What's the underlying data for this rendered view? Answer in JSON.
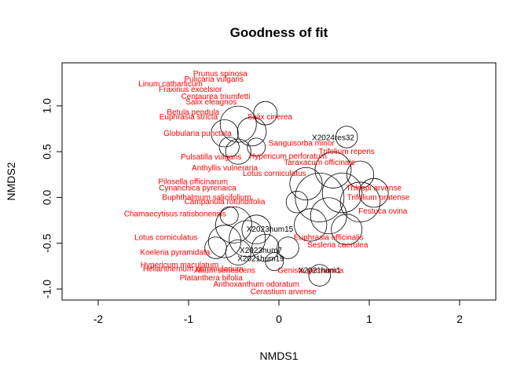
{
  "chart_data": {
    "type": "scatter",
    "title": "Goodness of fit",
    "xlabel": "NMDS1",
    "ylabel": "NMDS2",
    "xlim": [
      -2.4,
      2.4
    ],
    "ylim": [
      -1.12,
      1.47
    ],
    "xticks": [
      -2,
      -1,
      0,
      1,
      2
    ],
    "yticks": [
      -1.0,
      -0.5,
      0.0,
      0.5,
      1.0
    ],
    "ytick_labels": [
      "-1.0",
      "-0.5",
      "0.0",
      "0.5",
      "1.0"
    ],
    "grid": false,
    "colors": {
      "species": "#ff0000",
      "sites": "#000000",
      "circles": "#000000"
    },
    "species": [
      {
        "name": "Prunus spinosa",
        "x": -0.65,
        "y": 1.35
      },
      {
        "name": "Pulicaria vulgaris",
        "x": -0.72,
        "y": 1.29
      },
      {
        "name": "Linum catharticum",
        "x": -1.2,
        "y": 1.24
      },
      {
        "name": "Fraxinus excelsior",
        "x": -0.98,
        "y": 1.18
      },
      {
        "name": "Centaurea triumfetti",
        "x": -0.7,
        "y": 1.1
      },
      {
        "name": "Salix eleagnos",
        "x": -0.75,
        "y": 1.04
      },
      {
        "name": "Betula pendula",
        "x": -0.95,
        "y": 0.93
      },
      {
        "name": "Euphrasia stricta",
        "x": -1.0,
        "y": 0.88
      },
      {
        "name": "Salix cinerea",
        "x": -0.1,
        "y": 0.88
      },
      {
        "name": "Globularia punctata",
        "x": -0.9,
        "y": 0.7
      },
      {
        "name": "Pulsatilla vulgaris",
        "x": -0.75,
        "y": 0.44
      },
      {
        "name": "Anthyllis vulneraria",
        "x": -0.6,
        "y": 0.32
      },
      {
        "name": "Sanguisorba minor",
        "x": 0.25,
        "y": 0.59
      },
      {
        "name": "Hypericum perforatum",
        "x": 0.1,
        "y": 0.45
      },
      {
        "name": "Trifolium repens",
        "x": 0.75,
        "y": 0.5
      },
      {
        "name": "Taraxacum officinale",
        "x": 0.45,
        "y": 0.38
      },
      {
        "name": "Lotus corniculatus",
        "x": -0.05,
        "y": 0.26
      },
      {
        "name": "Pilosella officinarum",
        "x": -0.95,
        "y": 0.17
      },
      {
        "name": "Cynanchica pyrenaica",
        "x": -0.9,
        "y": 0.1
      },
      {
        "name": "Buphthalmum salicifolium",
        "x": -0.8,
        "y": 0.0
      },
      {
        "name": "Campanula rotundifolia",
        "x": -0.6,
        "y": -0.05
      },
      {
        "name": "Chamaecytisus ratisbonensis",
        "x": -1.15,
        "y": -0.18
      },
      {
        "name": "Thlaspi arvense",
        "x": 1.05,
        "y": 0.1
      },
      {
        "name": "Trifolium pratense",
        "x": 1.1,
        "y": 0.0
      },
      {
        "name": "Festuca ovina",
        "x": 1.15,
        "y": -0.15
      },
      {
        "name": "Lotus corniculatus",
        "x": -1.25,
        "y": -0.44
      },
      {
        "name": "Koeleria pyramidata",
        "x": -1.15,
        "y": -0.6
      },
      {
        "name": "Sesleria caerulea",
        "x": 0.65,
        "y": -0.52
      },
      {
        "name": "Euphrasia officinalis",
        "x": 0.55,
        "y": -0.44
      },
      {
        "name": "Hypericum maculatum",
        "x": -1.1,
        "y": -0.74
      },
      {
        "name": "Helianthemum nummularium",
        "x": -0.95,
        "y": -0.78
      },
      {
        "name": "Allium senescens",
        "x": -0.6,
        "y": -0.8
      },
      {
        "name": "Platanthera bifolia",
        "x": -0.75,
        "y": -0.88
      },
      {
        "name": "Anthoxanthum odoratum",
        "x": -0.25,
        "y": -0.95
      },
      {
        "name": "Cerastium arvense",
        "x": 0.05,
        "y": -1.03
      },
      {
        "name": "Genista germanica",
        "x": 0.35,
        "y": -0.8
      }
    ],
    "sites": [
      {
        "name": "X2024res32",
        "x": 0.6,
        "y": 0.65
      },
      {
        "name": "X2023hum15",
        "x": -0.1,
        "y": -0.35
      },
      {
        "name": "X2023hum7",
        "x": -0.2,
        "y": -0.58
      },
      {
        "name": "X2021hum19",
        "x": -0.2,
        "y": -0.67
      },
      {
        "name": "X2021hum1",
        "x": 0.45,
        "y": -0.8
      }
    ],
    "circles": [
      {
        "x": -0.15,
        "y": 0.92,
        "r": 0.13
      },
      {
        "x": -0.45,
        "y": 0.8,
        "r": 0.2
      },
      {
        "x": -0.6,
        "y": 0.7,
        "r": 0.15
      },
      {
        "x": -0.3,
        "y": 0.72,
        "r": 0.16
      },
      {
        "x": -0.55,
        "y": 0.55,
        "r": 0.11
      },
      {
        "x": -0.45,
        "y": 0.5,
        "r": 0.14
      },
      {
        "x": -0.25,
        "y": 0.55,
        "r": 0.1
      },
      {
        "x": 0.75,
        "y": 0.66,
        "r": 0.12
      },
      {
        "x": 0.45,
        "y": 0.0,
        "r": 0.27
      },
      {
        "x": 0.7,
        "y": 0.05,
        "r": 0.22
      },
      {
        "x": 0.3,
        "y": 0.15,
        "r": 0.18
      },
      {
        "x": 0.9,
        "y": -0.05,
        "r": 0.22
      },
      {
        "x": 1.05,
        "y": 0.05,
        "r": 0.16
      },
      {
        "x": 0.55,
        "y": -0.2,
        "r": 0.2
      },
      {
        "x": 0.35,
        "y": -0.3,
        "r": 0.18
      },
      {
        "x": 0.6,
        "y": 0.3,
        "r": 0.2
      },
      {
        "x": 0.75,
        "y": -0.35,
        "r": 0.17
      },
      {
        "x": 0.9,
        "y": 0.25,
        "r": 0.15
      },
      {
        "x": 0.2,
        "y": -0.05,
        "r": 0.12
      },
      {
        "x": -0.5,
        "y": -0.3,
        "r": 0.2
      },
      {
        "x": -0.6,
        "y": -0.48,
        "r": 0.18
      },
      {
        "x": -0.35,
        "y": -0.45,
        "r": 0.2
      },
      {
        "x": -0.25,
        "y": -0.35,
        "r": 0.16
      },
      {
        "x": -0.15,
        "y": -0.55,
        "r": 0.15
      },
      {
        "x": -0.45,
        "y": -0.6,
        "r": 0.14
      },
      {
        "x": -0.7,
        "y": -0.55,
        "r": 0.12
      },
      {
        "x": -0.55,
        "y": -0.2,
        "r": 0.1
      },
      {
        "x": 0.45,
        "y": -0.85,
        "r": 0.12
      },
      {
        "x": 0.1,
        "y": -0.55,
        "r": 0.12
      },
      {
        "x": -0.05,
        "y": -0.7,
        "r": 0.1
      }
    ]
  }
}
